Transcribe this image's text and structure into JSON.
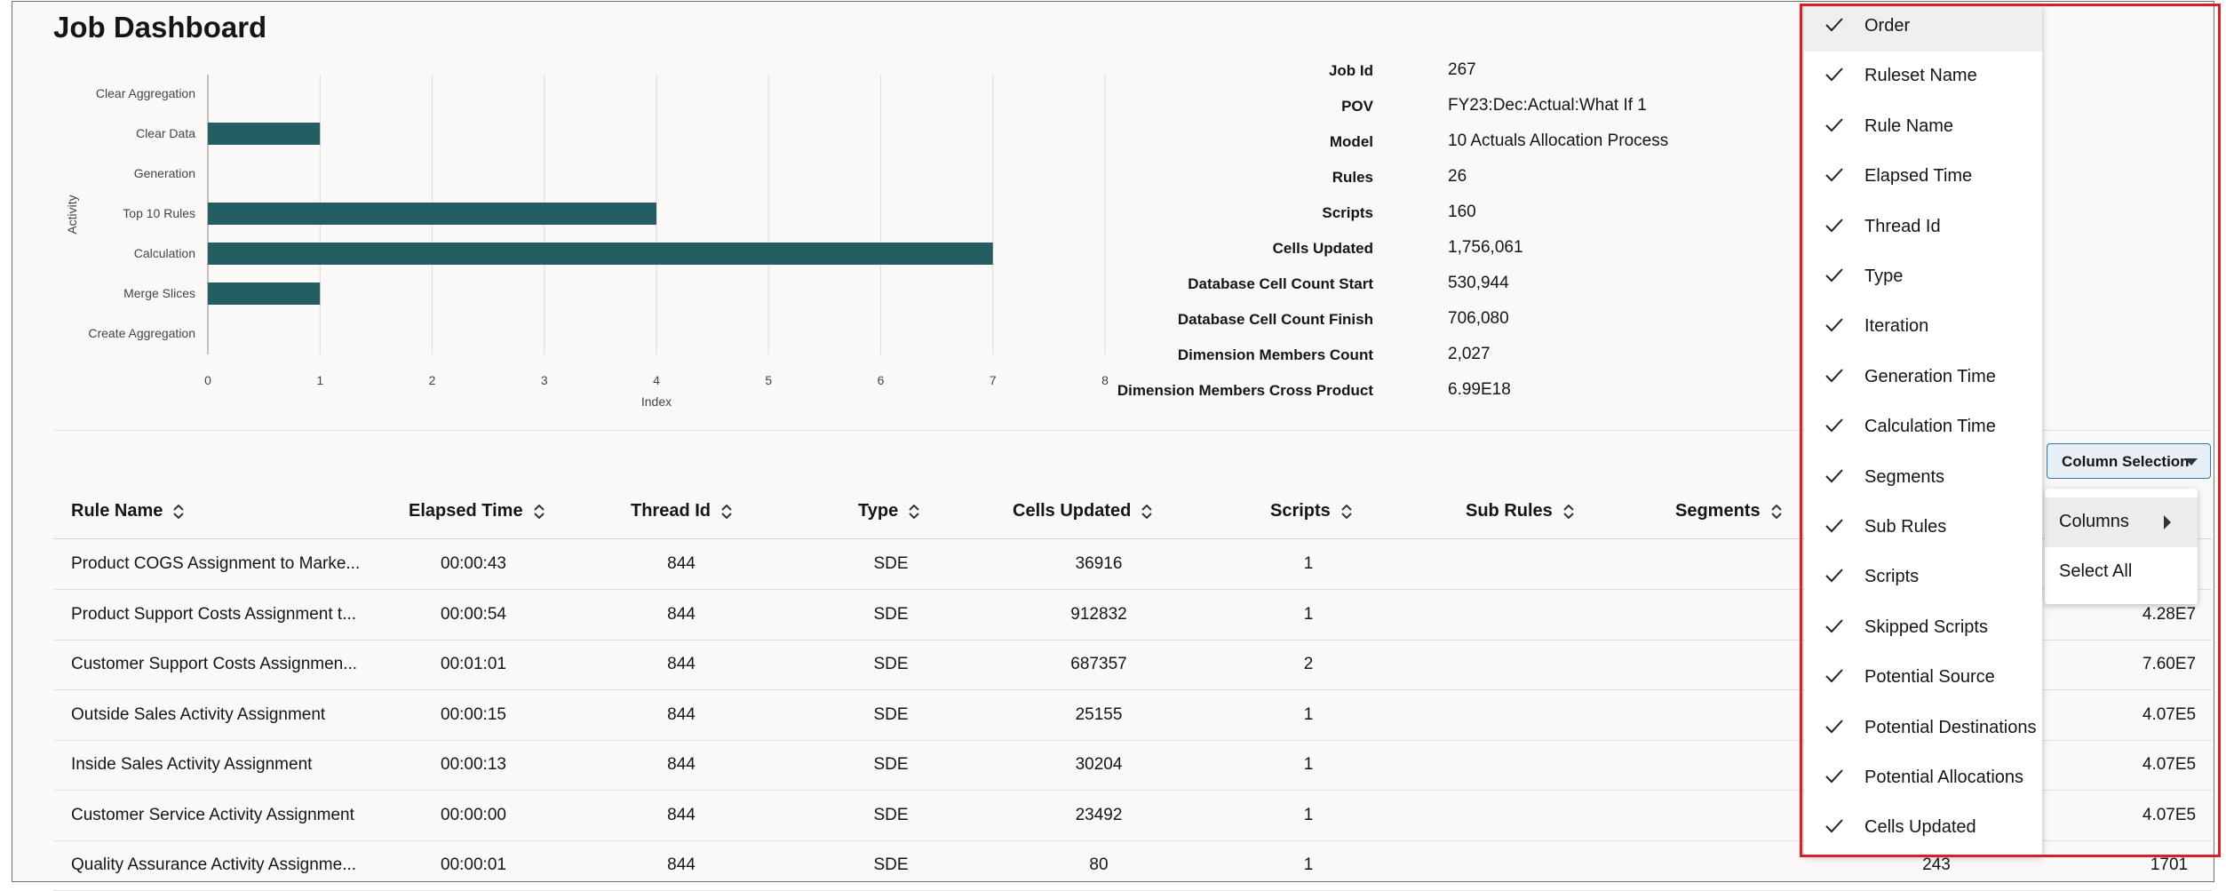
{
  "page": {
    "title": "Job Dashboard"
  },
  "chart_data": {
    "type": "bar",
    "orientation": "horizontal",
    "categories": [
      "Clear Aggregation",
      "Clear Data",
      "Generation",
      "Top 10 Rules",
      "Calculation",
      "Merge Slices",
      "Create Aggregation"
    ],
    "values": [
      0,
      1,
      0,
      4,
      7,
      1,
      0
    ],
    "xlabel": "Index",
    "ylabel": "Activity",
    "xlim": [
      0,
      8
    ],
    "xticks": [
      "0",
      "1",
      "2",
      "3",
      "4",
      "5",
      "6",
      "7",
      "8"
    ],
    "grid": true,
    "color": "#245e62"
  },
  "job_info": [
    {
      "key": "Job Id",
      "value": "267"
    },
    {
      "key": "POV",
      "value": "FY23:Dec:Actual:What If 1"
    },
    {
      "key": "Model",
      "value": "10 Actuals Allocation Process"
    },
    {
      "key": "Rules",
      "value": "26"
    },
    {
      "key": "Scripts",
      "value": "160"
    },
    {
      "key": "Cells Updated",
      "value": "1,756,061"
    },
    {
      "key": "Database Cell Count Start",
      "value": "530,944"
    },
    {
      "key": "Database Cell Count Finish",
      "value": "706,080"
    },
    {
      "key": "Dimension Members Count",
      "value": "2,027"
    },
    {
      "key": "Dimension Members Cross Product",
      "value": "6.99E18"
    }
  ],
  "table": {
    "headers": [
      "Rule Name",
      "Elapsed Time",
      "Thread Id",
      "Type",
      "Cells Updated",
      "Scripts",
      "Sub Rules",
      "Segments"
    ],
    "rows": [
      {
        "rule_name": "Product COGS Assignment to Marke...",
        "elapsed": "00:00:43",
        "thread": "844",
        "type": "SDE",
        "cells": "36916",
        "scripts": "1",
        "right_a": "",
        "right_b": ""
      },
      {
        "rule_name": "Product Support Costs Assignment t...",
        "elapsed": "00:00:54",
        "thread": "844",
        "type": "SDE",
        "cells": "912832",
        "scripts": "1",
        "right_a": "",
        "right_b": "4.28E7"
      },
      {
        "rule_name": "Customer Support Costs Assignmen...",
        "elapsed": "00:01:01",
        "thread": "844",
        "type": "SDE",
        "cells": "687357",
        "scripts": "2",
        "right_a": "",
        "right_b": "7.60E7"
      },
      {
        "rule_name": "Outside Sales Activity Assignment",
        "elapsed": "00:00:15",
        "thread": "844",
        "type": "SDE",
        "cells": "25155",
        "scripts": "1",
        "right_a": "",
        "right_b": "4.07E5"
      },
      {
        "rule_name": "Inside Sales Activity Assignment",
        "elapsed": "00:00:13",
        "thread": "844",
        "type": "SDE",
        "cells": "30204",
        "scripts": "1",
        "right_a": "",
        "right_b": "4.07E5"
      },
      {
        "rule_name": "Customer Service Activity Assignment",
        "elapsed": "00:00:00",
        "thread": "844",
        "type": "SDE",
        "cells": "23492",
        "scripts": "1",
        "right_a": "",
        "right_b": "4.07E5"
      },
      {
        "rule_name": "Quality Assurance Activity Assignme...",
        "elapsed": "00:00:01",
        "thread": "844",
        "type": "SDE",
        "cells": "80",
        "scripts": "1",
        "right_a": "243",
        "right_b": "1701"
      }
    ]
  },
  "column_selection": {
    "button_label": "Column Selection",
    "menu": [
      {
        "label": "Columns"
      },
      {
        "label": "Select All"
      }
    ]
  },
  "column_list": [
    "Order",
    "Ruleset Name",
    "Rule Name",
    "Elapsed Time",
    "Thread Id",
    "Type",
    "Iteration",
    "Generation Time",
    "Calculation Time",
    "Segments",
    "Sub Rules",
    "Scripts",
    "Skipped Scripts",
    "Potential Source",
    "Potential Destinations",
    "Potential Allocations",
    "Cells Updated"
  ],
  "colors": {
    "bar": "#245e62",
    "highlight": "#d6212b",
    "button_border": "#2f78a8"
  }
}
